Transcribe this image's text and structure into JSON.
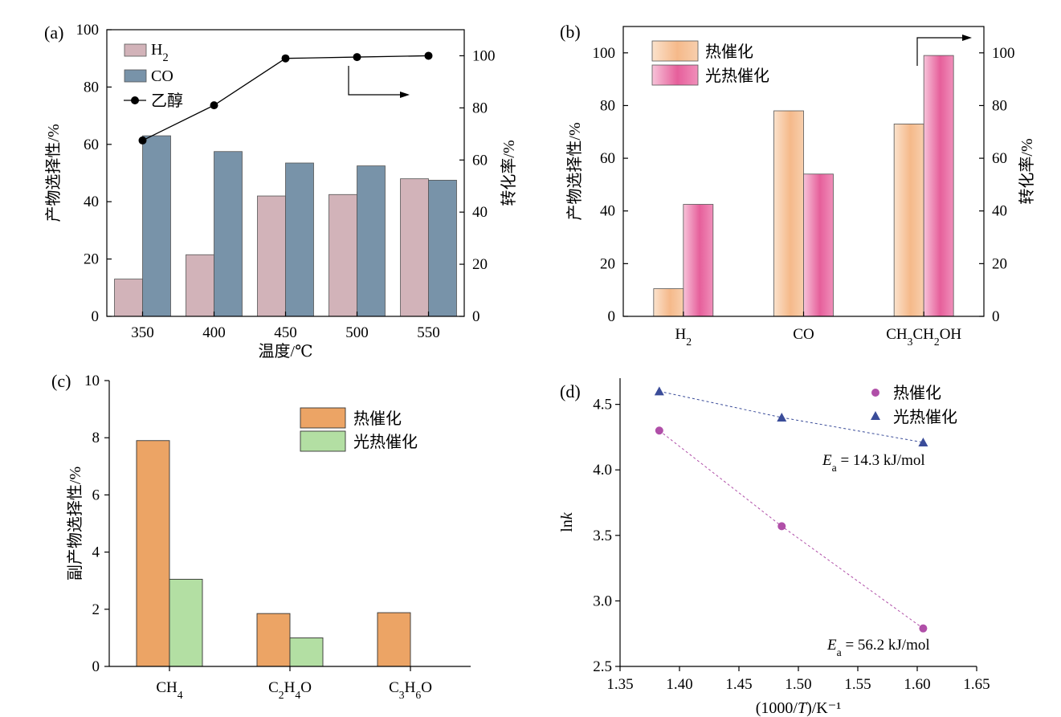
{
  "colors": {
    "h2_bar": "#d2b3b9",
    "co_bar": "#7893a9",
    "line": "#000000",
    "thermal_b": "#f6bc8f",
    "photo_b": "#ea6aa2",
    "thermal_c": "#eca465",
    "photo_c": "#b3dfa3",
    "thermal_d": "#b04fa8",
    "photo_d": "#3a4c99"
  },
  "chart_data": [
    {
      "panel_label": "(a)",
      "type": "bar",
      "categories": [
        "350",
        "400",
        "450",
        "500",
        "550"
      ],
      "xlabel": "温度/℃",
      "ylabel": "产物选择性/%",
      "y2label": "转化率/%",
      "ylim": [
        0,
        100
      ],
      "y2lim": [
        0,
        110
      ],
      "yticks": [
        "0",
        "20",
        "40",
        "60",
        "80",
        "100"
      ],
      "y2ticks": [
        "0",
        "20",
        "40",
        "60",
        "80",
        "100"
      ],
      "series": [
        {
          "name": "H2",
          "values": [
            13,
            21.5,
            42,
            42.5,
            48
          ]
        },
        {
          "name": "CO",
          "values": [
            63,
            57.5,
            53.5,
            52.5,
            47.5
          ]
        }
      ],
      "line_series": {
        "name": "乙醇",
        "axis": "right",
        "values": [
          67.5,
          81,
          99,
          99.5,
          100
        ]
      },
      "legend": [
        "H2",
        "CO",
        "乙醇"
      ],
      "legend_position": "top-left"
    },
    {
      "panel_label": "(b)",
      "type": "bar",
      "categories": [
        "H2",
        "CO",
        "CH3CH2OH"
      ],
      "ylabel": "产物选择性/%",
      "y2label": "转化率/%",
      "ylim": [
        0,
        110
      ],
      "y2lim": [
        0,
        110
      ],
      "yticks": [
        "0",
        "20",
        "40",
        "60",
        "80",
        "100"
      ],
      "y2ticks": [
        "0",
        "20",
        "40",
        "60",
        "80",
        "100"
      ],
      "series": [
        {
          "name": "热催化",
          "values": [
            10.5,
            78,
            73
          ]
        },
        {
          "name": "光热催化",
          "values": [
            42.5,
            54,
            99
          ]
        }
      ],
      "legend": [
        "热催化",
        "光热催化"
      ],
      "legend_position": "top-left"
    },
    {
      "panel_label": "(c)",
      "type": "bar",
      "categories": [
        "CH4",
        "C2H4O",
        "C3H6O"
      ],
      "ylabel": "副产物选择性/%",
      "ylim": [
        0,
        10
      ],
      "yticks": [
        "0",
        "2",
        "4",
        "6",
        "8",
        "10"
      ],
      "series": [
        {
          "name": "热催化",
          "values": [
            7.9,
            1.85,
            1.88
          ]
        },
        {
          "name": "光热催化",
          "values": [
            3.05,
            1.0,
            0
          ]
        }
      ],
      "legend": [
        "热催化",
        "光热催化"
      ],
      "legend_position": "top-right"
    },
    {
      "panel_label": "(d)",
      "type": "scatter",
      "xlabel": "(1000/T)/K⁻¹",
      "ylabel": "lnk",
      "xlim": [
        1.35,
        1.65
      ],
      "ylim": [
        2.5,
        4.7
      ],
      "xticks": [
        "1.35",
        "1.40",
        "1.45",
        "1.50",
        "1.55",
        "1.60",
        "1.65"
      ],
      "yticks": [
        "2.5",
        "3.0",
        "3.5",
        "4.0",
        "4.5"
      ],
      "series": [
        {
          "name": "热催化",
          "x": [
            1.383,
            1.486,
            1.605
          ],
          "y": [
            4.3,
            3.57,
            2.79
          ],
          "annotation": "Ea = 56.2 kJ/mol"
        },
        {
          "name": "光热催化",
          "x": [
            1.383,
            1.486,
            1.605
          ],
          "y": [
            4.6,
            4.4,
            4.21
          ],
          "annotation": "Ea = 14.3 kJ/mol"
        }
      ],
      "legend": [
        "热催化",
        "光热催化"
      ],
      "legend_position": "top-right"
    }
  ]
}
